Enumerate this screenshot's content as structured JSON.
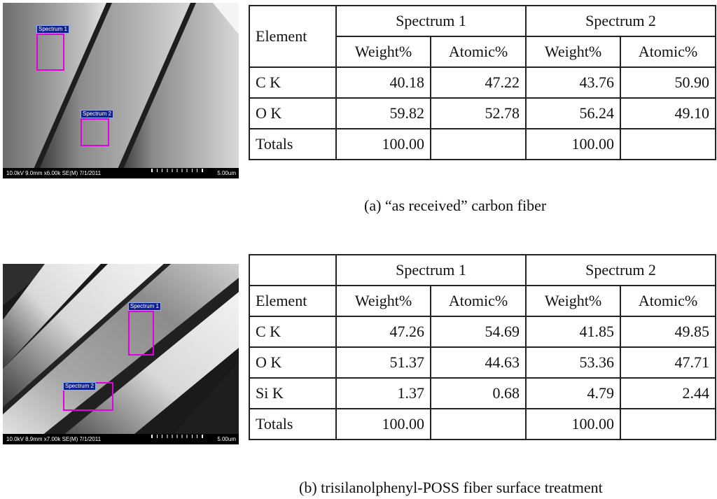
{
  "panel_a": {
    "sem": {
      "info": "10.0kV 9.0mm x6.00k SE(M) 7/1/2011",
      "scale": "5.00um",
      "spectrum_labels": [
        "Spectrum 1",
        "Spectrum 2"
      ]
    },
    "table": {
      "element_header": "Element",
      "spectrum_headers": [
        "Spectrum 1",
        "Spectrum 2"
      ],
      "sub_headers": [
        "Weight%",
        "Atomic%",
        "Weight%",
        "Atomic%"
      ],
      "rows": [
        {
          "element": "C K",
          "values": [
            "40.18",
            "47.22",
            "43.76",
            "50.90"
          ]
        },
        {
          "element": "O K",
          "values": [
            "59.82",
            "52.78",
            "56.24",
            "49.10"
          ]
        },
        {
          "element": "Totals",
          "values": [
            "100.00",
            "",
            "100.00",
            ""
          ]
        }
      ]
    },
    "caption": "(a) “as received” carbon fiber"
  },
  "panel_b": {
    "sem": {
      "info": "10.0kV 8.9mm x7.00k SE(M) 7/1/2011",
      "scale": "5.00um",
      "spectrum_labels": [
        "Spectrum 1",
        "Spectrum 2"
      ]
    },
    "table": {
      "element_header": "Element",
      "spectrum_headers": [
        "Spectrum 1",
        "Spectrum 2"
      ],
      "sub_headers": [
        "Weight%",
        "Atomic%",
        "Weight%",
        "Atomic%"
      ],
      "rows": [
        {
          "element": "C K",
          "values": [
            "47.26",
            "54.69",
            "41.85",
            "49.85"
          ]
        },
        {
          "element": "O K",
          "values": [
            "51.37",
            "44.63",
            "53.36",
            "47.71"
          ]
        },
        {
          "element": "Si K",
          "values": [
            "1.37",
            "0.68",
            "4.79",
            "2.44"
          ]
        },
        {
          "element": "Totals",
          "values": [
            "100.00",
            "",
            "100.00",
            ""
          ]
        }
      ]
    },
    "caption": "(b) trisilanolphenyl-POSS fiber surface treatment"
  }
}
